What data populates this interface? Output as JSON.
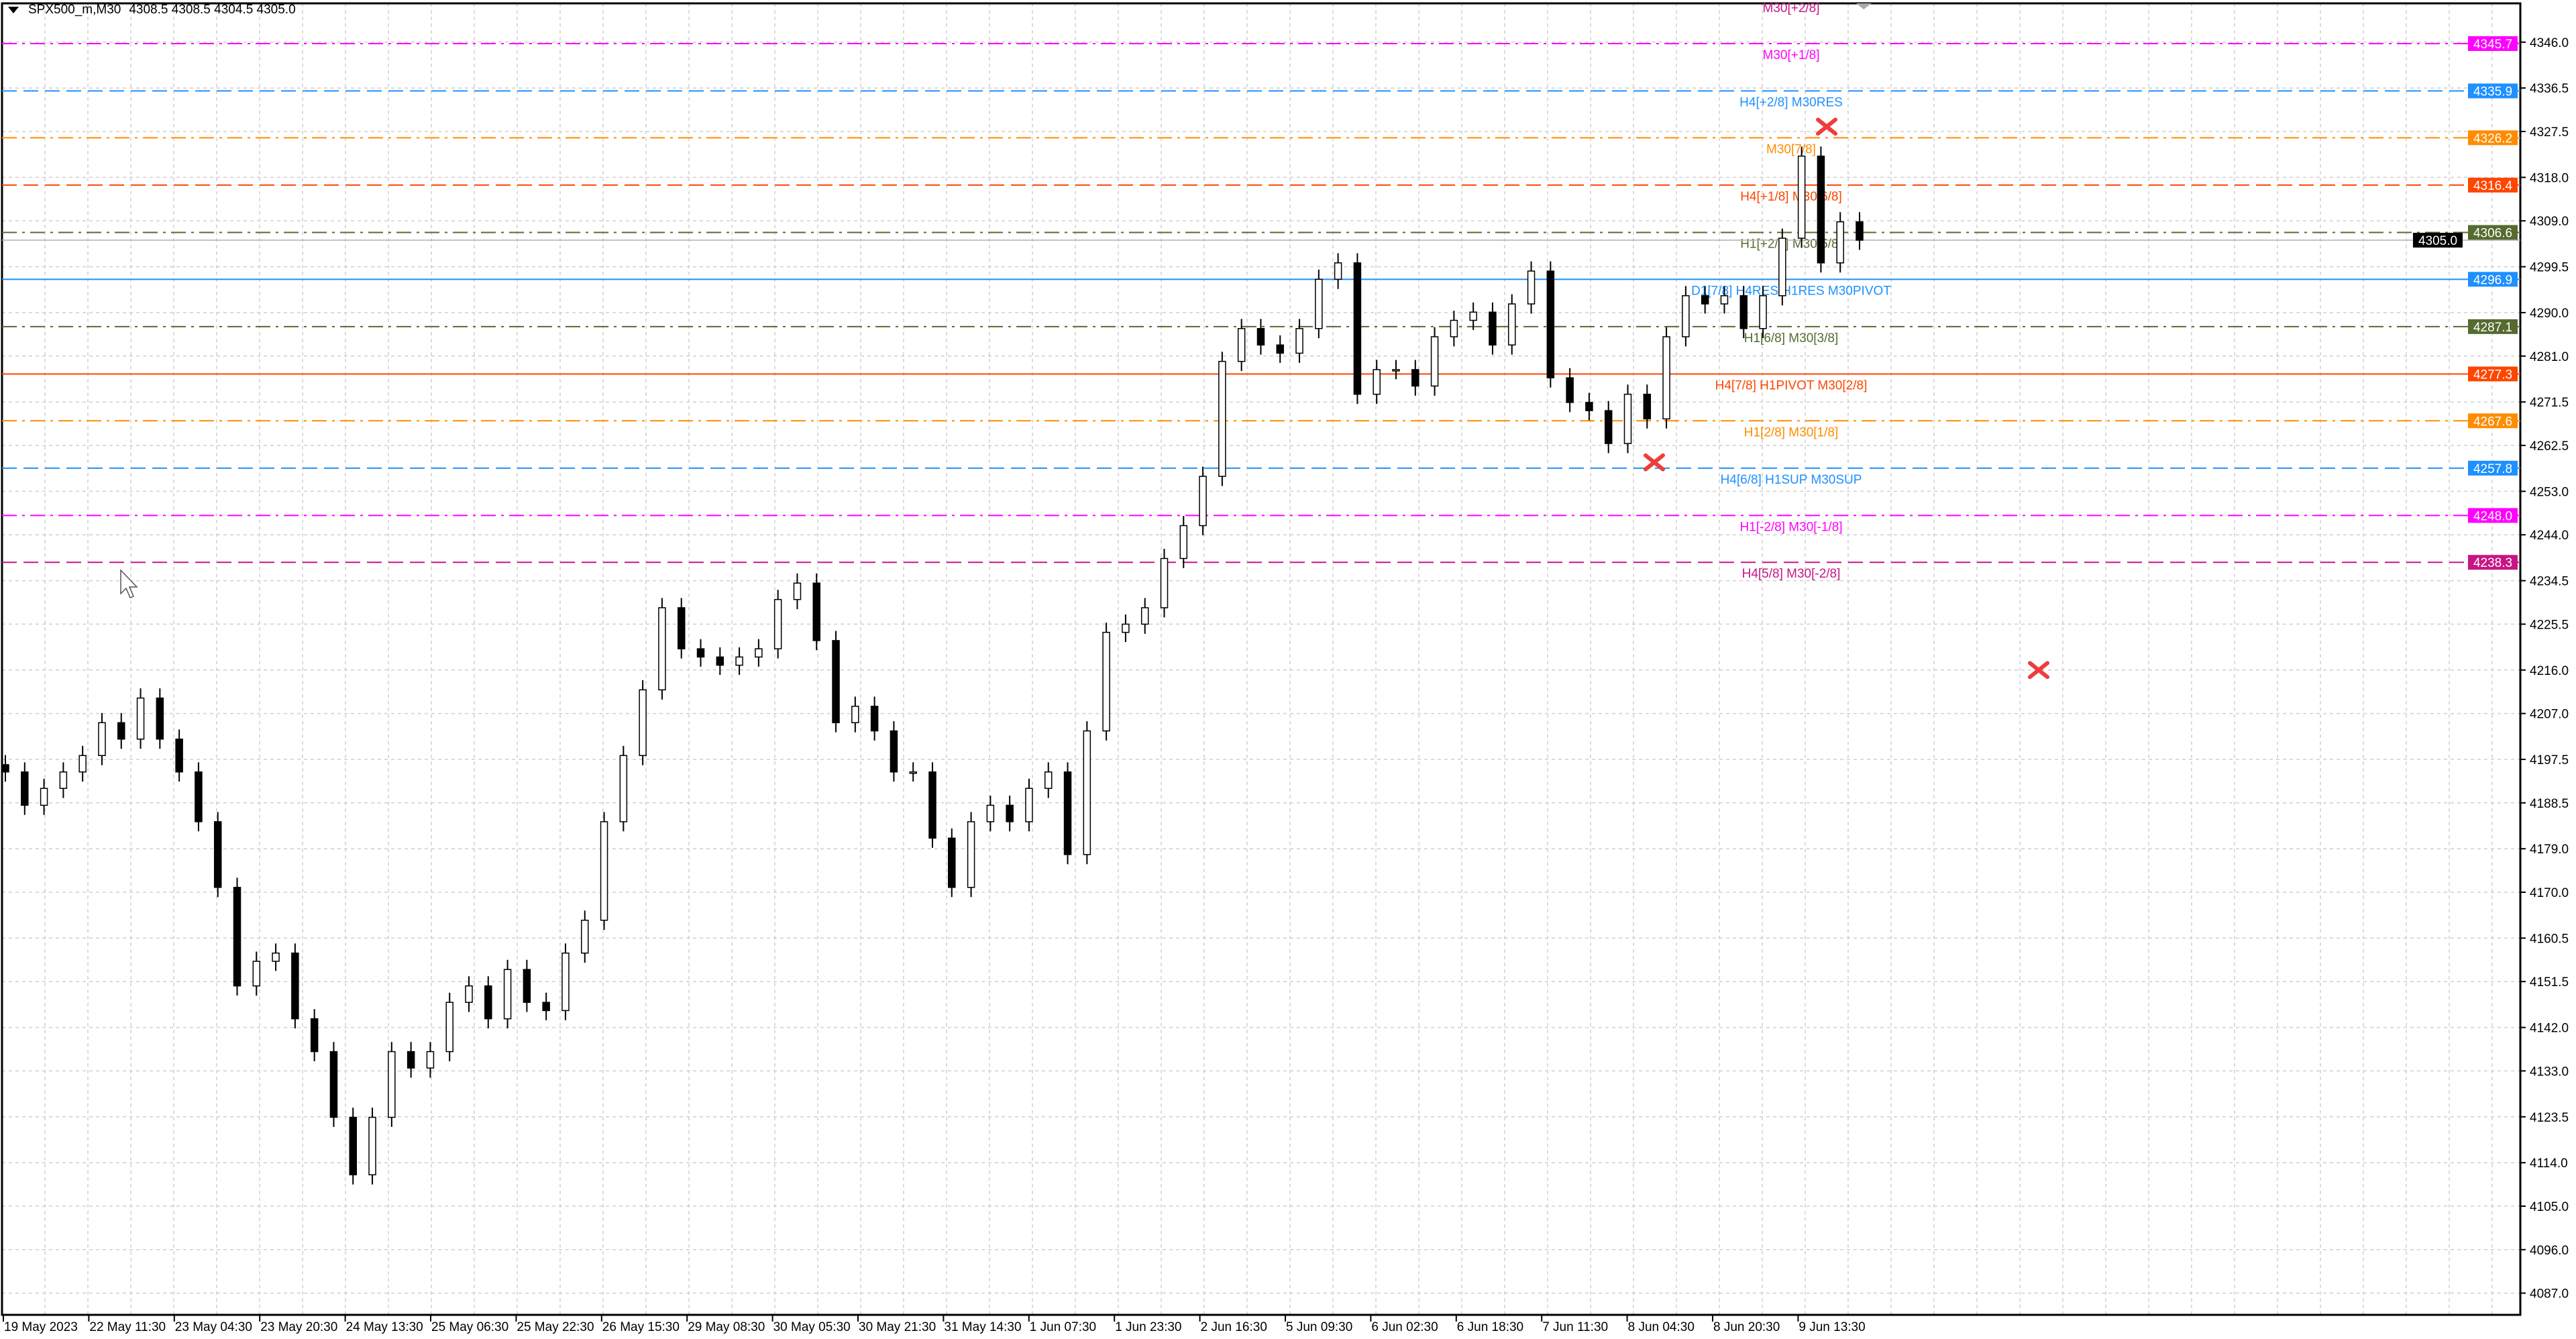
{
  "header": {
    "symbol": "SPX500_m,M30",
    "ohlc_text": "4308.5 4308.5 4304.5 4305.0"
  },
  "chart_data": {
    "type": "candlestick",
    "symbol": "SPX500_m",
    "timeframe": "M30",
    "ylim": [
      4083.0,
      4356.0
    ],
    "y_ticks": [
      4346.0,
      4336.5,
      4327.5,
      4318.0,
      4309.0,
      4299.5,
      4290.0,
      4281.0,
      4271.5,
      4262.5,
      4253.0,
      4244.0,
      4234.5,
      4225.5,
      4216.0,
      4207.0,
      4197.5,
      4188.5,
      4179.0,
      4170.0,
      4160.5,
      4151.5,
      4142.0,
      4133.0,
      4123.5,
      4114.0,
      4105.0,
      4096.0,
      4087.0
    ],
    "x_ticks": [
      "19 May 2023",
      "22 May 11:30",
      "23 May 04:30",
      "23 May 20:30",
      "24 May 13:30",
      "25 May 06:30",
      "25 May 22:30",
      "26 May 15:30",
      "29 May 08:30",
      "30 May 05:30",
      "30 May 21:30",
      "31 May 14:30",
      "1 Jun 07:30",
      "1 Jun 23:30",
      "2 Jun 16:30",
      "5 Jun 09:30",
      "6 Jun 02:30",
      "6 Jun 18:30",
      "7 Jun 11:30",
      "8 Jun 04:30",
      "8 Jun 20:30",
      "9 Jun 13:30"
    ],
    "close": [
      4194.9,
      4188.0,
      4191.5,
      4194.9,
      4198.3,
      4205.1,
      4201.7,
      4210.2,
      4201.7,
      4194.9,
      4184.6,
      4171.0,
      4150.6,
      4155.7,
      4157.4,
      4143.8,
      4137.0,
      4123.4,
      4111.5,
      4123.4,
      4137.0,
      4133.6,
      4137.0,
      4147.2,
      4150.6,
      4143.8,
      4154.0,
      4147.2,
      4145.5,
      4157.4,
      4164.2,
      4184.6,
      4198.3,
      4211.9,
      4228.9,
      4220.4,
      4218.7,
      4217.0,
      4218.7,
      4220.4,
      4230.6,
      4234.0,
      4222.1,
      4205.1,
      4208.5,
      4203.4,
      4194.9,
      4194.9,
      4181.2,
      4171.0,
      4184.6,
      4188.0,
      4184.6,
      4191.5,
      4194.9,
      4177.8,
      4203.4,
      4223.8,
      4225.5,
      4228.9,
      4239.1,
      4245.9,
      4256.1,
      4279.9,
      4286.7,
      4283.3,
      4281.6,
      4286.7,
      4296.9,
      4300.3,
      4273.1,
      4278.2,
      4278.2,
      4274.8,
      4285.0,
      4288.4,
      4290.1,
      4283.3,
      4291.8,
      4298.6,
      4276.5,
      4271.4,
      4269.7,
      4262.9,
      4273.1,
      4268.0,
      4285.0,
      4293.5,
      4291.8,
      4293.5,
      4286.7,
      4293.5,
      4305.4,
      4322.4,
      4300.3,
      4308.8,
      4305.0
    ],
    "current_price": {
      "value": 4305.0,
      "label": "4305.0",
      "color": "#000000"
    },
    "levels": [
      {
        "price": 4355.4,
        "label": "M30[+2/8]",
        "color": "#C71585",
        "style": "dash",
        "axis_label": ""
      },
      {
        "price": 4345.7,
        "label": "M30[+1/8]",
        "color": "#FF00FF",
        "style": "dashdot",
        "axis_label": "4345.7"
      },
      {
        "price": 4335.9,
        "label": "H4[+2/8] M30RES",
        "color": "#1E90FF",
        "style": "dash",
        "axis_label": "4335.9"
      },
      {
        "price": 4326.2,
        "label": "M30[7/8]",
        "color": "#FF8C00",
        "style": "dashdot",
        "axis_label": "4326.2"
      },
      {
        "price": 4316.4,
        "label": "H4[+1/8] M30[6/8]",
        "color": "#FF4500",
        "style": "dash",
        "axis_label": "4316.4"
      },
      {
        "price": 4306.6,
        "label": "H1[+2/8] M30[5/8]",
        "color": "#556B2F",
        "style": "dashdot",
        "axis_label": "4306.6"
      },
      {
        "price": 4296.9,
        "label": "D1[7/8] H4RES H1RES M30PIVOT",
        "color": "#1E90FF",
        "style": "solid",
        "axis_label": "4296.9"
      },
      {
        "price": 4287.1,
        "label": "H1[6/8] M30[3/8]",
        "color": "#556B2F",
        "style": "dashdot",
        "axis_label": "4287.1"
      },
      {
        "price": 4277.3,
        "label": "H4[7/8] H1PIVOT M30[2/8]",
        "color": "#FF4500",
        "style": "solid",
        "axis_label": "4277.3"
      },
      {
        "price": 4267.6,
        "label": "H1[2/8] M30[1/8]",
        "color": "#FF8C00",
        "style": "dashdot",
        "axis_label": "4267.6"
      },
      {
        "price": 4257.8,
        "label": "H4[6/8] H1SUP M30SUP",
        "color": "#1E90FF",
        "style": "dash",
        "axis_label": "4257.8"
      },
      {
        "price": 4248.0,
        "label": "H1[-2/8] M30[-1/8]",
        "color": "#FF00FF",
        "style": "dashdot",
        "axis_label": "4248.0"
      },
      {
        "price": 4238.3,
        "label": "H4[5/8] M30[-2/8]",
        "color": "#C71585",
        "style": "dash",
        "axis_label": "4238.3"
      }
    ],
    "markers": [
      {
        "type": "x-cross",
        "price": 4328.5,
        "color": "#F03C3C"
      },
      {
        "type": "x-cross",
        "price": 4259.0,
        "color": "#F03C3C"
      },
      {
        "type": "x-cross",
        "price": 4216.0,
        "color": "#F03C3C"
      }
    ],
    "grid": true,
    "colors": {
      "bull_body": "#FFFFFF",
      "bear_body": "#000000",
      "outline": "#000000",
      "grid": "#C8C8C8"
    }
  }
}
